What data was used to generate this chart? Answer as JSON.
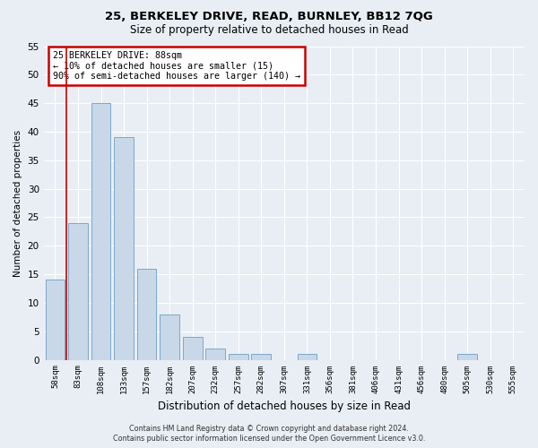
{
  "title": "25, BERKELEY DRIVE, READ, BURNLEY, BB12 7QG",
  "subtitle": "Size of property relative to detached houses in Read",
  "xlabel": "Distribution of detached houses by size in Read",
  "ylabel": "Number of detached properties",
  "footer_line1": "Contains HM Land Registry data © Crown copyright and database right 2024.",
  "footer_line2": "Contains public sector information licensed under the Open Government Licence v3.0.",
  "categories": [
    "58sqm",
    "83sqm",
    "108sqm",
    "133sqm",
    "157sqm",
    "182sqm",
    "207sqm",
    "232sqm",
    "257sqm",
    "282sqm",
    "307sqm",
    "331sqm",
    "356sqm",
    "381sqm",
    "406sqm",
    "431sqm",
    "456sqm",
    "480sqm",
    "505sqm",
    "530sqm",
    "555sqm"
  ],
  "values": [
    14,
    24,
    45,
    39,
    16,
    8,
    4,
    2,
    1,
    1,
    0,
    1,
    0,
    0,
    0,
    0,
    0,
    0,
    1,
    0,
    0
  ],
  "bar_color": "#c8d8e8",
  "bar_edge_color": "#7ca8cc",
  "red_line_x": 0.5,
  "annotation_title": "25 BERKELEY DRIVE: 88sqm",
  "annotation_line2": "← 10% of detached houses are smaller (15)",
  "annotation_line3": "90% of semi-detached houses are larger (140) →",
  "annotation_box_color": "#ffffff",
  "annotation_box_edge": "#cc0000",
  "ylim": [
    0,
    55
  ],
  "yticks": [
    0,
    5,
    10,
    15,
    20,
    25,
    30,
    35,
    40,
    45,
    50,
    55
  ],
  "background_color": "#e8eef4",
  "plot_bg_color": "#e8eef4",
  "grid_color": "#ffffff"
}
